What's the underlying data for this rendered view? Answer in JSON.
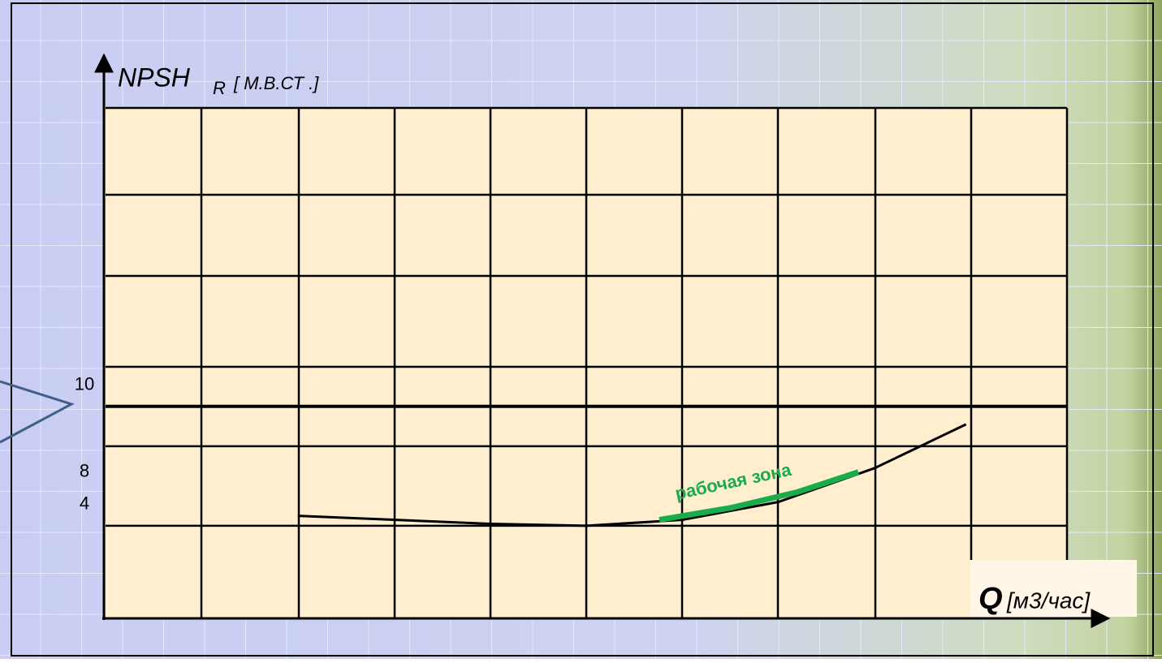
{
  "chart_data": {
    "type": "line",
    "ylabel": "NPSH",
    "ylabel_sub": "R",
    "ylabel_unit": "[ М.В.СТ .]",
    "xlabel": "Q",
    "xlabel_unit": "[м3/час]",
    "annotation": "рабочая зона",
    "xlim": [
      0,
      10
    ],
    "ylim": [
      0,
      25
    ],
    "yticks": [
      4,
      8,
      10
    ],
    "series": [
      {
        "color": "#000000",
        "x": [
          2.0,
          4.0,
          5.0,
          6.0,
          7.0,
          8.0,
          8.95
        ],
        "values": [
          4.5,
          4.1,
          4.0,
          4.3,
          5.2,
          6.9,
          9.1
        ]
      },
      {
        "color": "#1aab4a",
        "x": [
          5.76,
          6.5,
          7.2,
          7.83
        ],
        "values": [
          4.3,
          4.9,
          5.7,
          6.7
        ]
      }
    ]
  }
}
